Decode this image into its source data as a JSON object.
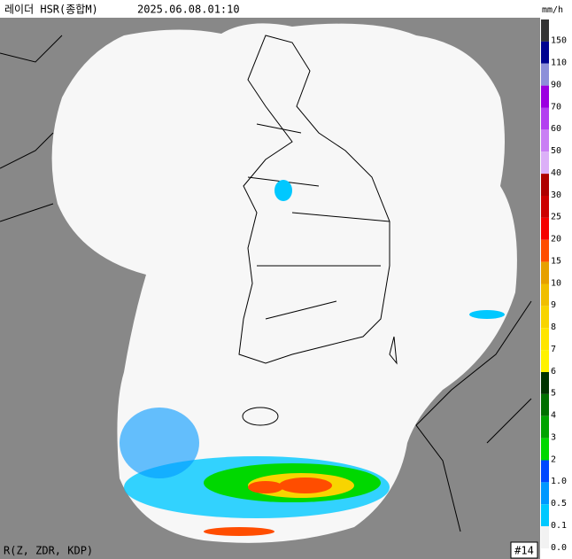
{
  "header": {
    "title": "레이더 HSR(종합M)",
    "timestamp": "2025.06.08.01:10",
    "unit": "mm/h"
  },
  "legend": [
    {
      "label": "150",
      "color": "#333333"
    },
    {
      "label": "110",
      "color": "#000390"
    },
    {
      "label": "90",
      "color": "#8c8fd9"
    },
    {
      "label": "70",
      "color": "#9b00e0"
    },
    {
      "label": "60",
      "color": "#b340f0"
    },
    {
      "label": "50",
      "color": "#c97ff4"
    },
    {
      "label": "40",
      "color": "#dcb0f8"
    },
    {
      "label": "30",
      "color": "#ae0000"
    },
    {
      "label": "25",
      "color": "#cc0000"
    },
    {
      "label": "20",
      "color": "#f50000"
    },
    {
      "label": "15",
      "color": "#ff4d00"
    },
    {
      "label": "10",
      "color": "#e6a000"
    },
    {
      "label": "9",
      "color": "#f0be00"
    },
    {
      "label": "8",
      "color": "#f8d400"
    },
    {
      "label": "7",
      "color": "#ffe500"
    },
    {
      "label": "6",
      "color": "#fff200"
    },
    {
      "label": "5",
      "color": "#003300"
    },
    {
      "label": "4",
      "color": "#006f00"
    },
    {
      "label": "3",
      "color": "#00a300"
    },
    {
      "label": "2",
      "color": "#00d800"
    },
    {
      "label": "1.0",
      "color": "#0047ff"
    },
    {
      "label": "0.5",
      "color": "#0098ff"
    },
    {
      "label": "0.1",
      "color": "#00c8ff"
    },
    {
      "label": "0.0",
      "color": "#f2f2f2"
    }
  ],
  "footer": {
    "algorithm": "R(Z, ZDR, KDP)",
    "frame": "#14"
  }
}
